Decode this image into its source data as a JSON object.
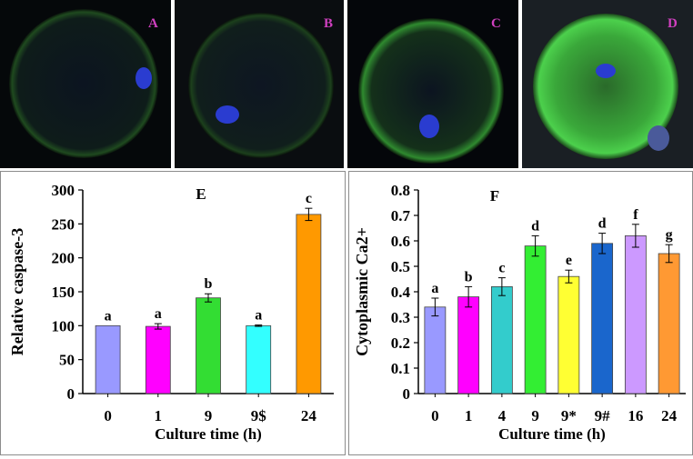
{
  "panels": [
    {
      "label": "A",
      "label_color": "#d040c0"
    },
    {
      "label": "B",
      "label_color": "#d040c0"
    },
    {
      "label": "C",
      "label_color": "#d040c0"
    },
    {
      "label": "D",
      "label_color": "#d040c0"
    }
  ],
  "chart_data": [
    {
      "type": "bar",
      "panel_label": "E",
      "title": "",
      "xlabel": "Culture time (h)",
      "ylabel": "Relative caspase-3",
      "ylim": [
        0,
        300
      ],
      "yticks": [
        "0",
        "50",
        "100",
        "150",
        "200",
        "250",
        "300"
      ],
      "categories": [
        "0",
        "1",
        "9",
        "9$",
        "24"
      ],
      "values": [
        100,
        99,
        141,
        100,
        264
      ],
      "errors": [
        0,
        4,
        6,
        1,
        9
      ],
      "significance": [
        "a",
        "a",
        "b",
        "a",
        "c"
      ],
      "colors": [
        "#9999ff",
        "#ff00ff",
        "#33dd33",
        "#33ffff",
        "#ff9900"
      ],
      "grid": false,
      "legend": "none"
    },
    {
      "type": "bar",
      "panel_label": "F",
      "title": "",
      "xlabel": "Culture time (h)",
      "ylabel": "Cytoplasmic Ca2+",
      "ylim": [
        0,
        0.8
      ],
      "yticks": [
        "0",
        "0.1",
        "0.2",
        "0.3",
        "0.4",
        "0.5",
        "0.6",
        "0.7",
        "0.8"
      ],
      "categories": [
        "0",
        "1",
        "4",
        "9",
        "9*",
        "9#",
        "16",
        "24"
      ],
      "values": [
        0.34,
        0.38,
        0.42,
        0.58,
        0.46,
        0.59,
        0.62,
        0.55
      ],
      "errors": [
        0.035,
        0.04,
        0.035,
        0.04,
        0.025,
        0.04,
        0.045,
        0.035
      ],
      "significance": [
        "a",
        "b",
        "c",
        "d",
        "e",
        "d",
        "f",
        "g"
      ],
      "colors": [
        "#9999ff",
        "#ff00ff",
        "#33cccc",
        "#33ee33",
        "#ffff33",
        "#1a66cc",
        "#cc99ff",
        "#ff9933"
      ],
      "grid": false,
      "legend": "none"
    }
  ]
}
